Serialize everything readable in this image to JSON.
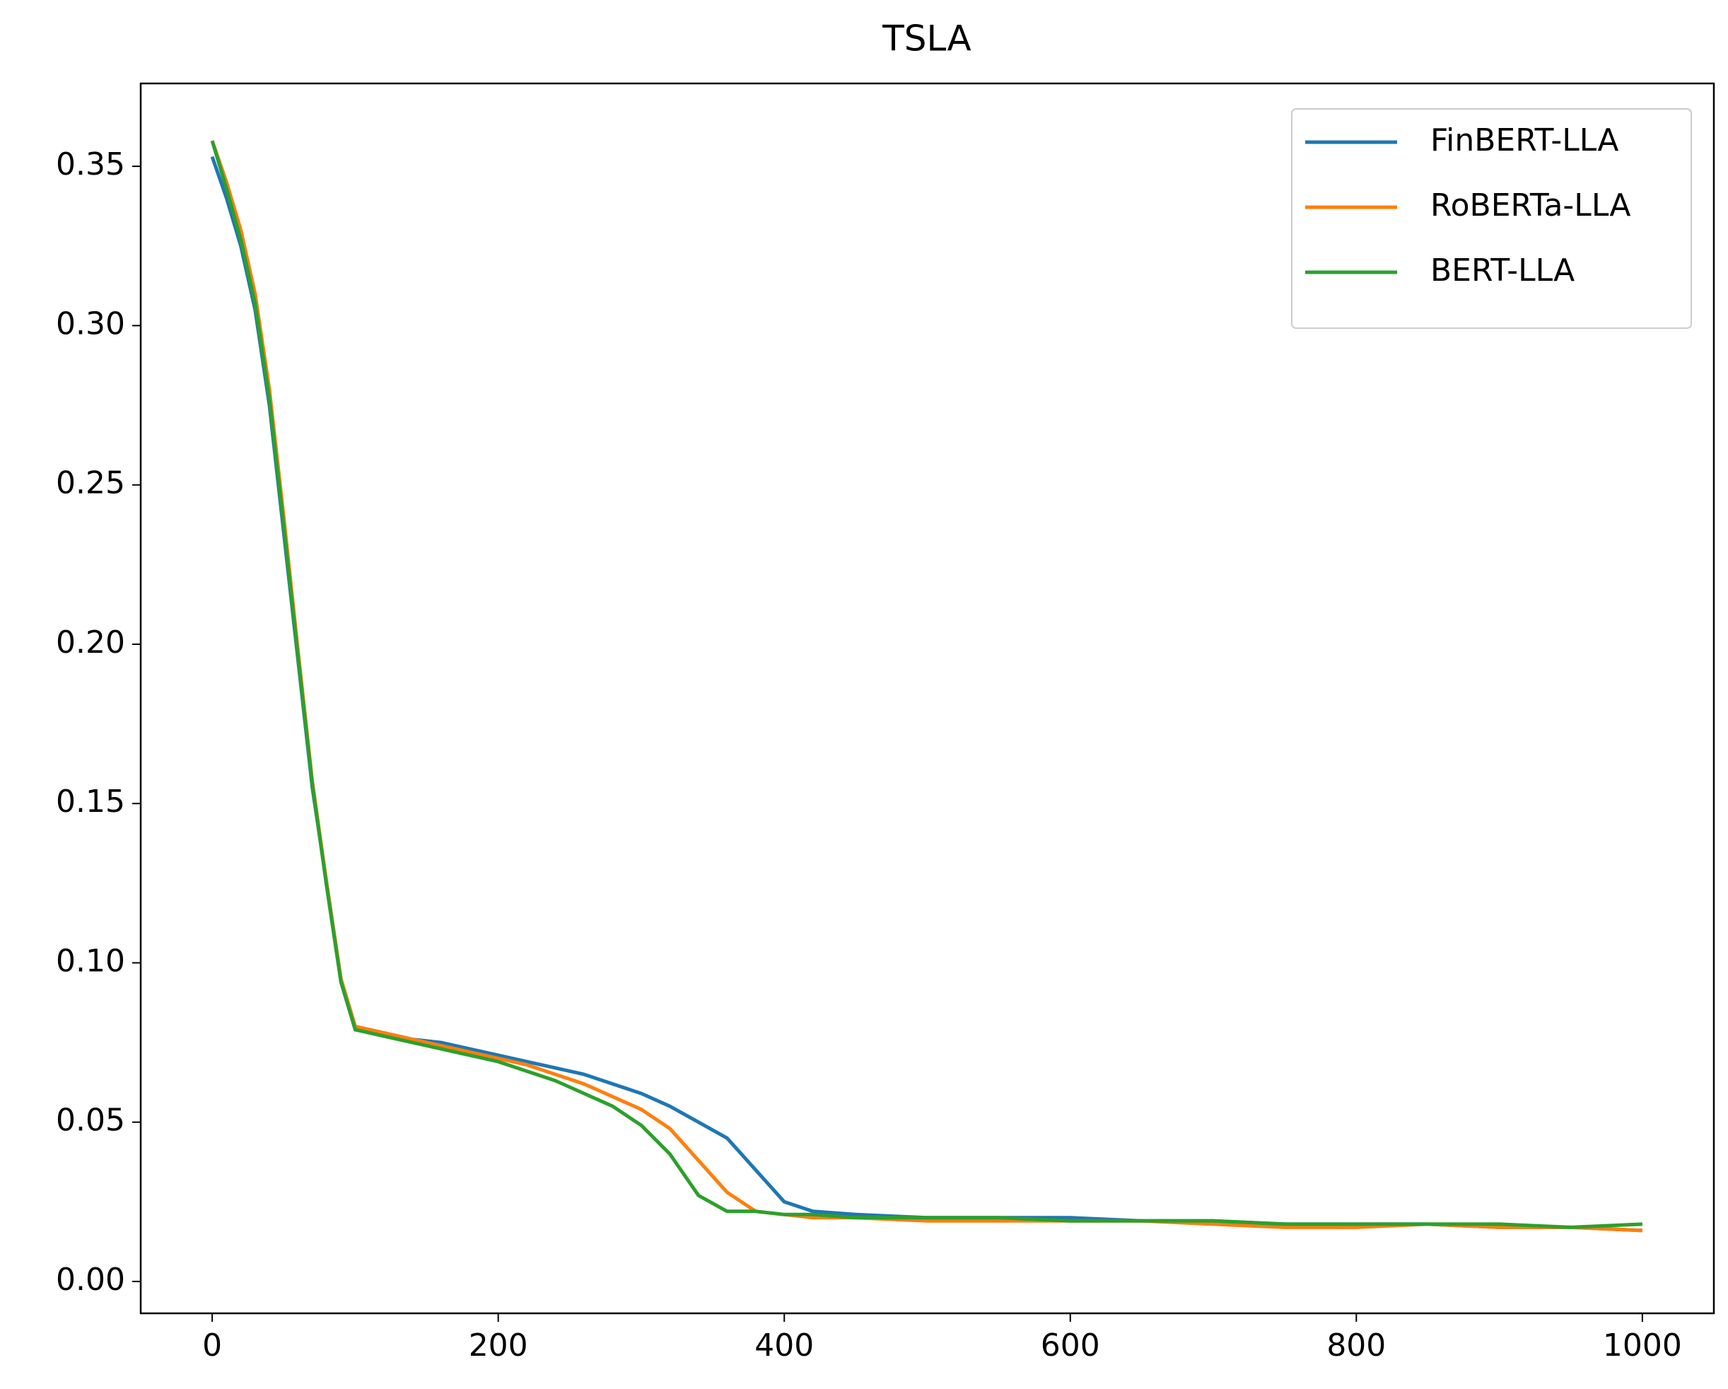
{
  "chart_data": {
    "type": "line",
    "title": "TSLA",
    "x": [
      0,
      10,
      20,
      30,
      40,
      50,
      60,
      70,
      80,
      90,
      100,
      120,
      140,
      160,
      180,
      200,
      220,
      240,
      260,
      280,
      300,
      320,
      340,
      360,
      380,
      400,
      420,
      450,
      500,
      550,
      600,
      650,
      700,
      750,
      800,
      850,
      900,
      950,
      1000
    ],
    "series": [
      {
        "name": "FinBERT-LLA",
        "color": "#1f77b4",
        "values": [
          0.353,
          0.34,
          0.325,
          0.305,
          0.275,
          0.235,
          0.195,
          0.155,
          0.125,
          0.095,
          0.08,
          0.078,
          0.076,
          0.075,
          0.073,
          0.071,
          0.069,
          0.067,
          0.065,
          0.062,
          0.059,
          0.055,
          0.05,
          0.045,
          0.035,
          0.025,
          0.022,
          0.021,
          0.02,
          0.02,
          0.02,
          0.019,
          0.019,
          0.018,
          0.018,
          0.018,
          0.017,
          0.017,
          0.016
        ]
      },
      {
        "name": "RoBERTa-LLA",
        "color": "#ff7f0e",
        "values": [
          0.358,
          0.345,
          0.33,
          0.31,
          0.28,
          0.24,
          0.198,
          0.157,
          0.125,
          0.095,
          0.08,
          0.078,
          0.076,
          0.074,
          0.072,
          0.07,
          0.068,
          0.065,
          0.062,
          0.058,
          0.054,
          0.048,
          0.038,
          0.028,
          0.022,
          0.021,
          0.02,
          0.02,
          0.019,
          0.019,
          0.019,
          0.019,
          0.018,
          0.017,
          0.017,
          0.018,
          0.017,
          0.017,
          0.016
        ]
      },
      {
        "name": "BERT-LLA",
        "color": "#2ca02c",
        "values": [
          0.358,
          0.343,
          0.327,
          0.307,
          0.277,
          0.237,
          0.196,
          0.156,
          0.124,
          0.094,
          0.079,
          0.077,
          0.075,
          0.073,
          0.071,
          0.069,
          0.066,
          0.063,
          0.059,
          0.055,
          0.049,
          0.04,
          0.027,
          0.022,
          0.022,
          0.021,
          0.021,
          0.02,
          0.02,
          0.02,
          0.019,
          0.019,
          0.019,
          0.018,
          0.018,
          0.018,
          0.018,
          0.017,
          0.018
        ]
      }
    ],
    "xlim": [
      -50,
      1050
    ],
    "ylim": [
      -0.01,
      0.376
    ],
    "xticks": [
      0,
      200,
      400,
      600,
      800,
      1000
    ],
    "yticks": [
      {
        "value": 0,
        "label": "0.00"
      },
      {
        "value": 0.05,
        "label": "0.05"
      },
      {
        "value": 0.1,
        "label": "0.10"
      },
      {
        "value": 0.15,
        "label": "0.15"
      },
      {
        "value": 0.2,
        "label": "0.20"
      },
      {
        "value": 0.25,
        "label": "0.25"
      },
      {
        "value": 0.3,
        "label": "0.30"
      },
      {
        "value": 0.35,
        "label": "0.35"
      }
    ],
    "legend": "upper right"
  }
}
